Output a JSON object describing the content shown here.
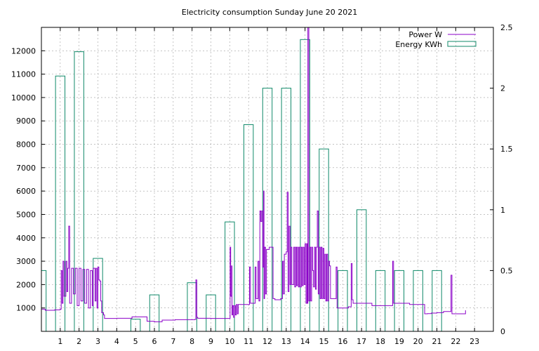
{
  "chart_data": {
    "title": "Electricity consumption Sunday June 20 2021",
    "type": "line+bar",
    "x_axis": {
      "range": [
        0,
        24
      ],
      "ticks": [
        1,
        2,
        3,
        4,
        5,
        6,
        7,
        8,
        9,
        10,
        11,
        12,
        13,
        14,
        15,
        16,
        17,
        18,
        19,
        20,
        21,
        22,
        23
      ]
    },
    "y_left": {
      "range": [
        0,
        13000
      ],
      "ticks": [
        1000,
        2000,
        3000,
        4000,
        5000,
        6000,
        7000,
        8000,
        9000,
        10000,
        11000,
        12000
      ]
    },
    "y_right": {
      "range": [
        0,
        2.5
      ],
      "ticks": [
        "0",
        "0.5",
        "1",
        "1.5",
        "2",
        "2.5"
      ]
    },
    "grid": true,
    "legend": {
      "placement": "top-right"
    },
    "series": [
      {
        "name": "Power W",
        "kind": "line",
        "axis": "left",
        "color": "#8b00c8",
        "points": [
          [
            0,
            950
          ],
          [
            0.2,
            900
          ],
          [
            0.7,
            920
          ],
          [
            1.0,
            950
          ],
          [
            1.05,
            2600
          ],
          [
            1.1,
            1200
          ],
          [
            1.15,
            3000
          ],
          [
            1.2,
            1500
          ],
          [
            1.3,
            3000
          ],
          [
            1.35,
            1700
          ],
          [
            1.4,
            2700
          ],
          [
            1.45,
            4500
          ],
          [
            1.5,
            1200
          ],
          [
            1.6,
            2700
          ],
          [
            1.7,
            1600
          ],
          [
            1.8,
            2700
          ],
          [
            1.9,
            1100
          ],
          [
            2.0,
            2700
          ],
          [
            2.1,
            1300
          ],
          [
            2.2,
            2650
          ],
          [
            2.3,
            1200
          ],
          [
            2.4,
            2650
          ],
          [
            2.5,
            1000
          ],
          [
            2.6,
            2600
          ],
          [
            2.7,
            1100
          ],
          [
            2.75,
            2700
          ],
          [
            2.85,
            1300
          ],
          [
            2.9,
            2700
          ],
          [
            2.95,
            1000
          ],
          [
            3.0,
            2750
          ],
          [
            3.05,
            2200
          ],
          [
            3.1,
            2150
          ],
          [
            3.15,
            1300
          ],
          [
            3.2,
            800
          ],
          [
            3.3,
            700
          ],
          [
            3.35,
            550
          ],
          [
            4.0,
            560
          ],
          [
            4.5,
            560
          ],
          [
            4.8,
            560
          ],
          [
            4.81,
            620
          ],
          [
            5.3,
            620
          ],
          [
            5.6,
            620
          ],
          [
            5.61,
            430
          ],
          [
            6.0,
            410
          ],
          [
            6.4,
            410
          ],
          [
            6.41,
            480
          ],
          [
            7.0,
            480
          ],
          [
            7.1,
            500
          ],
          [
            8.0,
            500
          ],
          [
            8.15,
            510
          ],
          [
            8.2,
            2200
          ],
          [
            8.25,
            600
          ],
          [
            8.3,
            560
          ],
          [
            9.0,
            550
          ],
          [
            10.0,
            560
          ],
          [
            10.02,
            3600
          ],
          [
            10.05,
            1500
          ],
          [
            10.1,
            2800
          ],
          [
            10.12,
            700
          ],
          [
            10.15,
            1100
          ],
          [
            10.2,
            600
          ],
          [
            10.25,
            1100
          ],
          [
            10.3,
            700
          ],
          [
            10.35,
            1150
          ],
          [
            10.4,
            750
          ],
          [
            10.45,
            1150
          ],
          [
            10.5,
            1150
          ],
          [
            10.9,
            1150
          ],
          [
            11.0,
            1150
          ],
          [
            11.05,
            2750
          ],
          [
            11.1,
            1200
          ],
          [
            11.3,
            1200
          ],
          [
            11.35,
            2750
          ],
          [
            11.4,
            1400
          ],
          [
            11.5,
            3000
          ],
          [
            11.55,
            1300
          ],
          [
            11.6,
            5150
          ],
          [
            11.65,
            4700
          ],
          [
            11.7,
            5150
          ],
          [
            11.75,
            2750
          ],
          [
            11.8,
            6000
          ],
          [
            11.82,
            1400
          ],
          [
            11.85,
            3600
          ],
          [
            11.9,
            1600
          ],
          [
            11.95,
            3500
          ],
          [
            12.05,
            3500
          ],
          [
            12.1,
            3600
          ],
          [
            12.2,
            3600
          ],
          [
            12.3,
            1400
          ],
          [
            12.4,
            1350
          ],
          [
            12.7,
            1400
          ],
          [
            12.8,
            3000
          ],
          [
            12.85,
            1600
          ],
          [
            12.9,
            3300
          ],
          [
            13.0,
            3400
          ],
          [
            13.05,
            5950
          ],
          [
            13.1,
            1700
          ],
          [
            13.15,
            4500
          ],
          [
            13.2,
            2000
          ],
          [
            13.25,
            3600
          ],
          [
            13.3,
            2000
          ],
          [
            13.4,
            3600
          ],
          [
            13.45,
            1900
          ],
          [
            13.5,
            3600
          ],
          [
            13.55,
            1950
          ],
          [
            13.6,
            3600
          ],
          [
            13.65,
            1900
          ],
          [
            13.7,
            3600
          ],
          [
            13.75,
            1900
          ],
          [
            13.8,
            3600
          ],
          [
            13.85,
            1950
          ],
          [
            13.9,
            3600
          ],
          [
            13.95,
            2000
          ],
          [
            14.0,
            3750
          ],
          [
            14.05,
            1200
          ],
          [
            14.1,
            3750
          ],
          [
            14.12,
            1200
          ],
          [
            14.15,
            13000
          ],
          [
            14.2,
            1300
          ],
          [
            14.25,
            3600
          ],
          [
            14.3,
            1300
          ],
          [
            14.35,
            3600
          ],
          [
            14.4,
            2600
          ],
          [
            14.45,
            1900
          ],
          [
            14.5,
            3600
          ],
          [
            14.55,
            1800
          ],
          [
            14.6,
            3600
          ],
          [
            14.65,
            5150
          ],
          [
            14.7,
            1600
          ],
          [
            14.75,
            3600
          ],
          [
            14.8,
            1400
          ],
          [
            14.85,
            3600
          ],
          [
            14.9,
            1400
          ],
          [
            14.95,
            3550
          ],
          [
            15.0,
            1400
          ],
          [
            15.05,
            3300
          ],
          [
            15.1,
            1300
          ],
          [
            15.15,
            3300
          ],
          [
            15.2,
            1300
          ],
          [
            15.25,
            3000
          ],
          [
            15.3,
            2800
          ],
          [
            15.35,
            1400
          ],
          [
            15.5,
            1400
          ],
          [
            15.6,
            1400
          ],
          [
            15.65,
            2750
          ],
          [
            15.7,
            1000
          ],
          [
            16.0,
            1000
          ],
          [
            16.3,
            1050
          ],
          [
            16.4,
            1050
          ],
          [
            16.45,
            2900
          ],
          [
            16.5,
            1350
          ],
          [
            16.55,
            1200
          ],
          [
            17.0,
            1200
          ],
          [
            17.5,
            1200
          ],
          [
            17.55,
            1100
          ],
          [
            18.0,
            1100
          ],
          [
            18.6,
            1100
          ],
          [
            18.65,
            3000
          ],
          [
            18.7,
            1200
          ],
          [
            19.0,
            1200
          ],
          [
            19.5,
            1200
          ],
          [
            19.55,
            1150
          ],
          [
            20.0,
            1150
          ],
          [
            20.3,
            1150
          ],
          [
            20.35,
            750
          ],
          [
            20.5,
            760
          ],
          [
            20.7,
            780
          ],
          [
            21.0,
            800
          ],
          [
            21.3,
            800
          ],
          [
            21.35,
            850
          ],
          [
            21.7,
            850
          ],
          [
            21.75,
            2400
          ],
          [
            21.8,
            750
          ],
          [
            22.0,
            750
          ],
          [
            22.5,
            750
          ],
          [
            22.52,
            900
          ]
        ]
      },
      {
        "name": "Energy KWh",
        "kind": "bars",
        "axis": "right",
        "color": "#118a6a",
        "bars": [
          {
            "hour": 0,
            "value": 0.5
          },
          {
            "hour": 1,
            "value": 2.1
          },
          {
            "hour": 2,
            "value": 2.3
          },
          {
            "hour": 3,
            "value": 0.6
          },
          {
            "hour": 4,
            "value": 0
          },
          {
            "hour": 5,
            "value": 0.1
          },
          {
            "hour": 6,
            "value": 0.3
          },
          {
            "hour": 7,
            "value": 0
          },
          {
            "hour": 8,
            "value": 0.4
          },
          {
            "hour": 9,
            "value": 0.3
          },
          {
            "hour": 10,
            "value": 0.9
          },
          {
            "hour": 11,
            "value": 1.7
          },
          {
            "hour": 12,
            "value": 2.0
          },
          {
            "hour": 13,
            "value": 2.0
          },
          {
            "hour": 14,
            "value": 2.4
          },
          {
            "hour": 15,
            "value": 1.5
          },
          {
            "hour": 16,
            "value": 0.5
          },
          {
            "hour": 17,
            "value": 1.0
          },
          {
            "hour": 18,
            "value": 0.5
          },
          {
            "hour": 19,
            "value": 0.5
          },
          {
            "hour": 20,
            "value": 0.5
          },
          {
            "hour": 21,
            "value": 0.5
          }
        ]
      }
    ]
  }
}
